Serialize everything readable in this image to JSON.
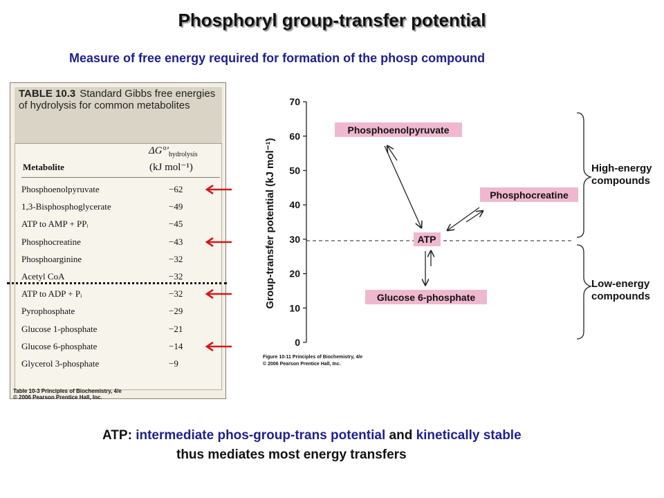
{
  "title": "Phosphoryl group-transfer potential",
  "subtitle": "Measure of free energy required for formation of the phosp compound",
  "table": {
    "caption_bold": "TABLE 10.3",
    "caption_text": "Standard Gibbs free energies of hydrolysis for common metabolites",
    "col_metabolite": "Metabolite",
    "col_dg": "ΔG°′",
    "col_dg_sub": "hydrolysis",
    "col_unit": "(kJ mol⁻¹)",
    "rows": [
      {
        "name": "Phosphoenolpyruvate",
        "value": "−62",
        "arrow": true
      },
      {
        "name": "1,3-Bisphosphoglycerate",
        "value": "−49",
        "arrow": false
      },
      {
        "name": "ATP to AMP + PPᵢ",
        "value": "−45",
        "arrow": false
      },
      {
        "name": "Phosphocreatine",
        "value": "−43",
        "arrow": true
      },
      {
        "name": "Phosphoarginine",
        "value": "−32",
        "arrow": false
      },
      {
        "name": "Acetyl CoA",
        "value": "−32",
        "arrow": false
      },
      {
        "name": "ATP to ADP + Pᵢ",
        "value": "−32",
        "arrow": true
      },
      {
        "name": "Pyrophosphate",
        "value": "−29",
        "arrow": false
      },
      {
        "name": "Glucose 1-phosphate",
        "value": "−21",
        "arrow": false
      },
      {
        "name": "Glucose 6-phosphate",
        "value": "−14",
        "arrow": true
      },
      {
        "name": "Glycerol 3-phosphate",
        "value": "−9",
        "arrow": false
      }
    ],
    "credit_line1": "Table 10-3 Principles of Biochemistry, 4/e",
    "credit_line2": "© 2006 Pearson Prentice Hall, Inc.",
    "arrow_color": "#d11a1a"
  },
  "diagram": {
    "ylabel": "Group-transfer potential (kJ mol⁻¹)",
    "ticks": [
      "0",
      "10",
      "20",
      "30",
      "40",
      "50",
      "60",
      "70"
    ],
    "compounds": {
      "pep": "Phosphoenolpyruvate",
      "pcr": "Phosphocreatine",
      "atp": "ATP",
      "g6p": "Glucose 6-phosphate"
    },
    "high_label_1": "High-energy",
    "high_label_2": "compounds",
    "low_label_1": "Low-energy",
    "low_label_2": "compounds",
    "credit_line1": "Figure 10-11 Principles of Biochemistry, 4/e",
    "credit_line2": "© 2006 Pearson Prentice Hall, Inc.",
    "box_color": "#f0b8cf"
  },
  "bottom": {
    "lead": "ATP:",
    "phrase1": "intermediate phos-group-trans potential",
    "and": "and",
    "phrase2": "kinetically stable",
    "line2": "thus mediates most energy transfers"
  }
}
